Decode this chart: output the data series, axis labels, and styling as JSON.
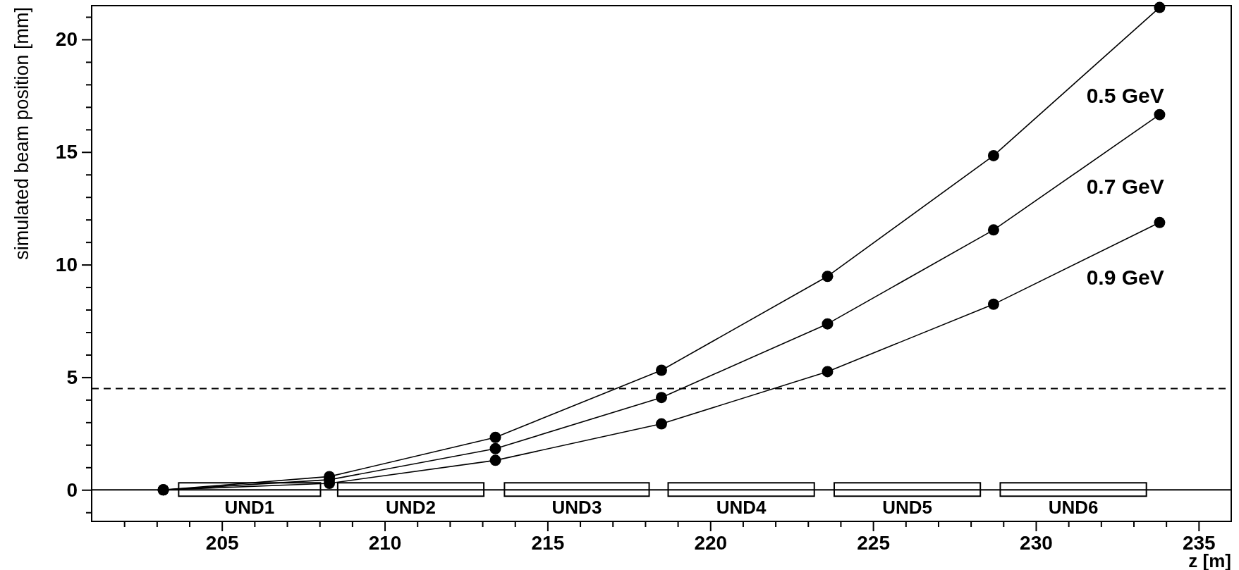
{
  "chart_data": {
    "type": "line",
    "xlabel": "z [m]",
    "ylabel": "simulated beam position [mm]",
    "x": [
      203.2,
      208.3,
      213.4,
      218.5,
      223.6,
      228.7,
      233.8
    ],
    "series": [
      {
        "name": "0.5 GeV",
        "color": "#000000",
        "values": [
          0,
          0.59,
          2.33,
          5.31,
          9.48,
          14.84,
          21.42
        ]
      },
      {
        "name": "0.7 GeV",
        "color": "#000000",
        "values": [
          0,
          0.45,
          1.83,
          4.1,
          7.37,
          11.54,
          16.66
        ]
      },
      {
        "name": "0.9 GeV",
        "color": "#000000",
        "values": [
          0,
          0.29,
          1.31,
          2.93,
          5.25,
          8.24,
          11.87
        ]
      }
    ],
    "marker": "circle",
    "line_style": "solid",
    "xlim": [
      201,
      236
    ],
    "ylim": [
      -1.4,
      21.5
    ],
    "xticks": [
      {
        "value": 202,
        "label": null
      },
      {
        "value": 203,
        "label": null
      },
      {
        "value": 204,
        "label": null
      },
      205,
      {
        "value": 206,
        "label": null
      },
      {
        "value": 207,
        "label": null
      },
      {
        "value": 208,
        "label": null
      },
      {
        "value": 209,
        "label": null
      },
      210,
      {
        "value": 211,
        "label": null
      },
      {
        "value": 212,
        "label": null
      },
      {
        "value": 213,
        "label": null
      },
      {
        "value": 214,
        "label": null
      },
      215,
      {
        "value": 216,
        "label": null
      },
      {
        "value": 217,
        "label": null
      },
      {
        "value": 218,
        "label": null
      },
      {
        "value": 219,
        "label": null
      },
      220,
      {
        "value": 221,
        "label": null
      },
      {
        "value": 222,
        "label": null
      },
      {
        "value": 223,
        "label": null
      },
      {
        "value": 224,
        "label": null
      },
      225,
      {
        "value": 226,
        "label": null
      },
      {
        "value": 227,
        "label": null
      },
      {
        "value": 228,
        "label": null
      },
      {
        "value": 229,
        "label": null
      },
      230,
      {
        "value": 231,
        "label": null
      },
      {
        "value": 232,
        "label": null
      },
      {
        "value": 233,
        "label": null
      },
      {
        "value": 234,
        "label": null
      },
      235
    ],
    "yticks": [
      {
        "value": -1,
        "label": null
      },
      0,
      {
        "value": 1,
        "label": null
      },
      {
        "value": 2,
        "label": null
      },
      {
        "value": 3,
        "label": null
      },
      {
        "value": 4,
        "label": null
      },
      5,
      {
        "value": 6,
        "label": null
      },
      {
        "value": 7,
        "label": null
      },
      {
        "value": 8,
        "label": null
      },
      {
        "value": 9,
        "label": null
      },
      10,
      {
        "value": 11,
        "label": null
      },
      {
        "value": 12,
        "label": null
      },
      {
        "value": 13,
        "label": null
      },
      {
        "value": 14,
        "label": null
      },
      15,
      {
        "value": 16,
        "label": null
      },
      {
        "value": 17,
        "label": null
      },
      {
        "value": 18,
        "label": null
      },
      {
        "value": 19,
        "label": null
      },
      20,
      {
        "value": 21,
        "label": null
      }
    ],
    "ref_lines": [
      {
        "axis": "y",
        "value": 0,
        "line_style": "solid",
        "color": "#000000"
      },
      {
        "axis": "y",
        "value": 4.5,
        "line_style": "dashed",
        "color": "#000000"
      }
    ],
    "annotations": [
      {
        "text": "UND1",
        "x": 205.85,
        "y": 0
      },
      {
        "text": "UND2",
        "x": 210.8,
        "y": 0
      },
      {
        "text": "UND3",
        "x": 215.9,
        "y": 0
      },
      {
        "text": "UND4",
        "x": 220.95,
        "y": 0
      },
      {
        "text": "UND5",
        "x": 226.05,
        "y": 0
      },
      {
        "text": "UND6",
        "x": 231.15,
        "y": 0
      }
    ],
    "grid": false
  }
}
